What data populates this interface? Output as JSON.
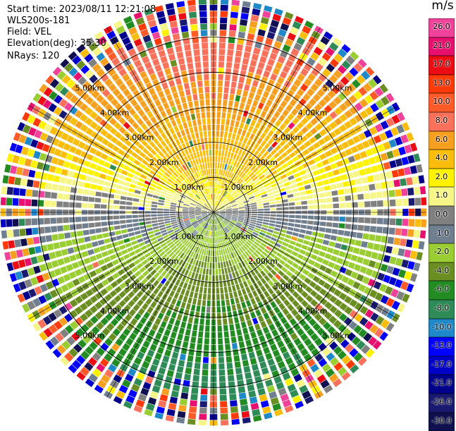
{
  "header": {
    "start_time": "Start time: 2023/08/11 12:21:08",
    "instrument": "WLS200s-181",
    "field": "Field: VEL",
    "elevation": "Elevation(deg): 35.30",
    "nrays": "NRays: 120"
  },
  "chart_data": {
    "type": "ppi",
    "field": "VEL",
    "n_rays": 120,
    "max_range_km": 6.1,
    "range_rings_km": [
      1.0,
      2.0,
      3.0,
      4.0,
      5.0
    ],
    "ring_labels": [
      "1.00km",
      "2.00km",
      "3.00km",
      "4.00km",
      "5.00km"
    ],
    "spokes_deg": [
      0,
      30,
      60,
      90,
      120,
      150,
      180,
      210,
      240,
      270,
      300,
      330
    ],
    "pattern_notes": "Radial velocity: positive (yellow/orange/salmon) toward north, negative (olive/green/dark green) toward south, near-zero (grey) along the east-west axis; noisy multicolour speckle beyond ~5 km",
    "colorbar": {
      "unit": "m/s",
      "ticks": [
        "26.0",
        "21.0",
        "17.0",
        "13.0",
        "10.0",
        "8.0",
        "6.0",
        "4.0",
        "2.0",
        "1.0",
        "0.0",
        "-1.0",
        "-2.0",
        "-4.0",
        "-6.0",
        "-8.0",
        "-10.0",
        "-13.0",
        "-17.0",
        "-21.0",
        "-26.0",
        "-30.0"
      ],
      "colors": [
        "#f0429a",
        "#e8106e",
        "#ec0c14",
        "#ff3a08",
        "#ff5a28",
        "#f9715a",
        "#f7a020",
        "#fbbd0c",
        "#fff200",
        "#f6f688",
        "#808080",
        "#6f7f90",
        "#9acd32",
        "#6b8e23",
        "#228b22",
        "#2e8b57",
        "#1e88c8",
        "#0000ff",
        "#0000c8",
        "#00008b",
        "#191970",
        "#101050"
      ]
    }
  }
}
